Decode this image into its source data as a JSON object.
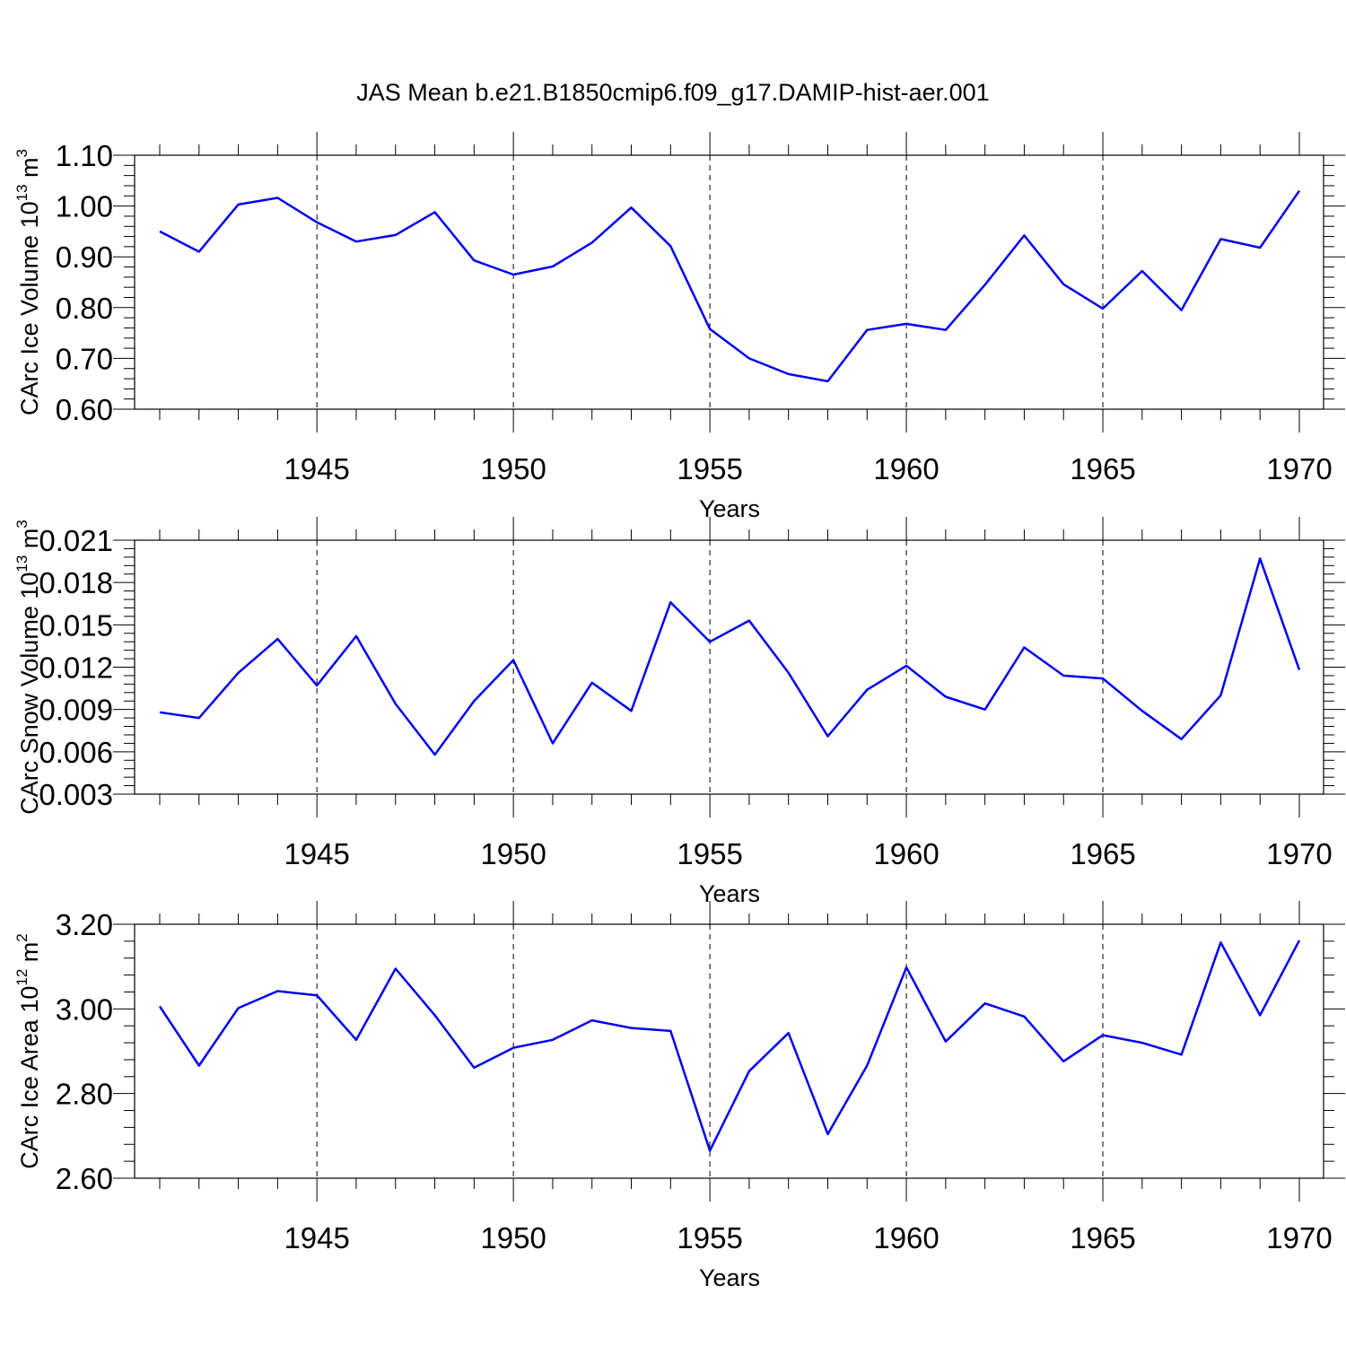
{
  "title": "JAS Mean b.e21.B1850cmip6.f09_g17.DAMIP-hist-aer.001",
  "chart_data": [
    {
      "type": "line",
      "ylabel": "CArc Ice Volume 10",
      "ylabel_exp": "13",
      "ylabel_unit": " m",
      "ylabel_unit_exp": "3",
      "xlabel": "Years",
      "xlim": [
        1941,
        1970
      ],
      "ylim": [
        0.6,
        1.1
      ],
      "yticks": [
        "0.60",
        "0.70",
        "0.80",
        "0.90",
        "1.00",
        "1.10"
      ],
      "yticks_val": [
        0.6,
        0.7,
        0.8,
        0.9,
        1.0,
        1.1
      ],
      "xticks": [
        1945,
        1950,
        1955,
        1960,
        1965,
        1970
      ],
      "color": "#0000f0",
      "x": [
        1941,
        1942,
        1943,
        1944,
        1945,
        1946,
        1947,
        1948,
        1949,
        1950,
        1951,
        1952,
        1953,
        1954,
        1955,
        1956,
        1957,
        1958,
        1959,
        1960,
        1961,
        1962,
        1963,
        1964,
        1965,
        1966,
        1967,
        1968,
        1969,
        1970
      ],
      "values": [
        0.95,
        0.91,
        1.003,
        1.016,
        0.968,
        0.93,
        0.943,
        0.988,
        0.893,
        0.865,
        0.881,
        0.928,
        0.997,
        0.921,
        0.758,
        0.7,
        0.669,
        0.655,
        0.756,
        0.768,
        0.756,
        0.845,
        0.942,
        0.846,
        0.798,
        0.872,
        0.795,
        0.935,
        0.918,
        1.03
      ]
    },
    {
      "type": "line",
      "ylabel": "CArc Snow Volume 10",
      "ylabel_exp": "13",
      "ylabel_unit": " m",
      "ylabel_unit_exp": "3",
      "xlabel": "Years",
      "xlim": [
        1941,
        1970
      ],
      "ylim": [
        0.003,
        0.021
      ],
      "yticks": [
        "0.003",
        "0.006",
        "0.009",
        "0.012",
        "0.015",
        "0.018",
        "0.021"
      ],
      "yticks_val": [
        0.003,
        0.006,
        0.009,
        0.012,
        0.015,
        0.018,
        0.021
      ],
      "xticks": [
        1945,
        1950,
        1955,
        1960,
        1965,
        1970
      ],
      "color": "#0000f0",
      "x": [
        1941,
        1942,
        1943,
        1944,
        1945,
        1946,
        1947,
        1948,
        1949,
        1950,
        1951,
        1952,
        1953,
        1954,
        1955,
        1956,
        1957,
        1958,
        1959,
        1960,
        1961,
        1962,
        1963,
        1964,
        1965,
        1966,
        1967,
        1968,
        1969,
        1970
      ],
      "values": [
        0.0088,
        0.0084,
        0.0116,
        0.014,
        0.0107,
        0.0142,
        0.0094,
        0.0058,
        0.0096,
        0.0125,
        0.0066,
        0.0109,
        0.0089,
        0.0166,
        0.0138,
        0.0153,
        0.0116,
        0.0071,
        0.0104,
        0.0121,
        0.0099,
        0.009,
        0.0134,
        0.0114,
        0.0112,
        0.0089,
        0.0069,
        0.01,
        0.0197,
        0.0118
      ]
    },
    {
      "type": "line",
      "ylabel": "CArc Ice Area 10",
      "ylabel_exp": "12",
      "ylabel_unit": " m",
      "ylabel_unit_exp": "2",
      "xlabel": "Years",
      "xlim": [
        1941,
        1970
      ],
      "ylim": [
        2.6,
        3.2
      ],
      "yticks": [
        "2.60",
        "2.80",
        "3.00",
        "3.20"
      ],
      "yticks_val": [
        2.6,
        2.8,
        3.0,
        3.2
      ],
      "xticks": [
        1945,
        1950,
        1955,
        1960,
        1965,
        1970
      ],
      "color": "#0000f0",
      "x": [
        1941,
        1942,
        1943,
        1944,
        1945,
        1946,
        1947,
        1948,
        1949,
        1950,
        1951,
        1952,
        1953,
        1954,
        1955,
        1956,
        1957,
        1958,
        1959,
        1960,
        1961,
        1962,
        1963,
        1964,
        1965,
        1966,
        1967,
        1968,
        1969,
        1970
      ],
      "values": [
        3.006,
        2.866,
        3.002,
        3.042,
        3.032,
        2.927,
        3.095,
        2.985,
        2.861,
        2.908,
        2.927,
        2.973,
        2.955,
        2.948,
        2.665,
        2.853,
        2.943,
        2.704,
        2.866,
        3.098,
        2.923,
        3.013,
        2.982,
        2.876,
        2.938,
        2.92,
        2.892,
        3.157,
        2.985,
        3.162
      ]
    }
  ]
}
